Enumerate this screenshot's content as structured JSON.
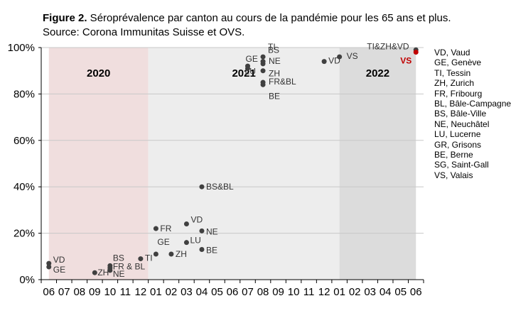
{
  "caption": {
    "figure_number": "Figure 2.",
    "text": " Séroprévalence par canton au cours de la pandémie pour les 65 ans et plus. Source: Corona Immunitas  Suisse et OVS."
  },
  "legend": [
    "VD, Vaud",
    "GE, Genève",
    "TI, Tessin",
    "ZH, Zurich",
    "FR, Fribourg",
    "BL, Bâle-Campagne",
    "BS, Bâle-Ville",
    "NE, Neuchâtel",
    "LU, Lucerne",
    "GR, Grisons",
    "BE, Berne",
    "SG, Saint-Gall",
    "VS, Valais"
  ],
  "chart_data": {
    "type": "scatter",
    "title": "",
    "xlabel": "",
    "ylabel": "",
    "x_categories": [
      "06",
      "07",
      "08",
      "09",
      "10",
      "11",
      "12",
      "01",
      "02",
      "03",
      "04",
      "05",
      "06",
      "07",
      "08",
      "09",
      "10",
      "11",
      "12",
      "01",
      "02",
      "03",
      "04",
      "05",
      "06"
    ],
    "y_ticks": [
      "0%",
      "20%",
      "40%",
      "60%",
      "80%",
      "100%"
    ],
    "ylim": [
      0,
      100
    ],
    "grid": "horizontal",
    "legend_placement": "right",
    "year_bands": [
      {
        "label": "2020",
        "from": 0,
        "to": 6.5,
        "color": "#f0dede"
      },
      {
        "label": "2021",
        "from": 6.5,
        "to": 19,
        "color": "#ededed"
      },
      {
        "label": "2022",
        "from": 19,
        "to": 24,
        "color": "#dcdcdc"
      }
    ],
    "point_color": "#404040",
    "highlight_color": "#c00000",
    "points": [
      {
        "x": 0,
        "y": 7,
        "label": "VD"
      },
      {
        "x": 0,
        "y": 5.5,
        "label": "GE"
      },
      {
        "x": 3,
        "y": 3,
        "label": "ZH"
      },
      {
        "x": 4,
        "y": 6,
        "label": "BS"
      },
      {
        "x": 4,
        "y": 5,
        "label": "FR & BL"
      },
      {
        "x": 4,
        "y": 4,
        "label": "NE"
      },
      {
        "x": 6,
        "y": 9,
        "label": "TI"
      },
      {
        "x": 7,
        "y": 22,
        "label": "FR"
      },
      {
        "x": 7,
        "y": 11,
        "label": "GE"
      },
      {
        "x": 8,
        "y": 11,
        "label": "ZH"
      },
      {
        "x": 9,
        "y": 24,
        "label": "VD"
      },
      {
        "x": 9,
        "y": 16,
        "label": "LU"
      },
      {
        "x": 10,
        "y": 40,
        "label": "BS&BL"
      },
      {
        "x": 10,
        "y": 21,
        "label": "NE"
      },
      {
        "x": 10,
        "y": 13,
        "label": "BE"
      },
      {
        "x": 13,
        "y": 92,
        "label": "GE"
      },
      {
        "x": 13,
        "y": 91,
        "label": "LU"
      },
      {
        "x": 14,
        "y": 96,
        "label": "TI"
      },
      {
        "x": 14,
        "y": 94,
        "label": "BS"
      },
      {
        "x": 14,
        "y": 93,
        "label": "NE"
      },
      {
        "x": 14,
        "y": 90,
        "label": "ZH"
      },
      {
        "x": 14,
        "y": 85,
        "label": "FR&BL"
      },
      {
        "x": 14,
        "y": 84,
        "label": "BE"
      },
      {
        "x": 18,
        "y": 94,
        "label": "VD"
      },
      {
        "x": 19,
        "y": 96,
        "label": "VS"
      },
      {
        "x": 24,
        "y": 99,
        "label": "TI&ZH&VD"
      },
      {
        "x": 24,
        "y": 98,
        "label": "VS",
        "highlight": true
      }
    ]
  }
}
